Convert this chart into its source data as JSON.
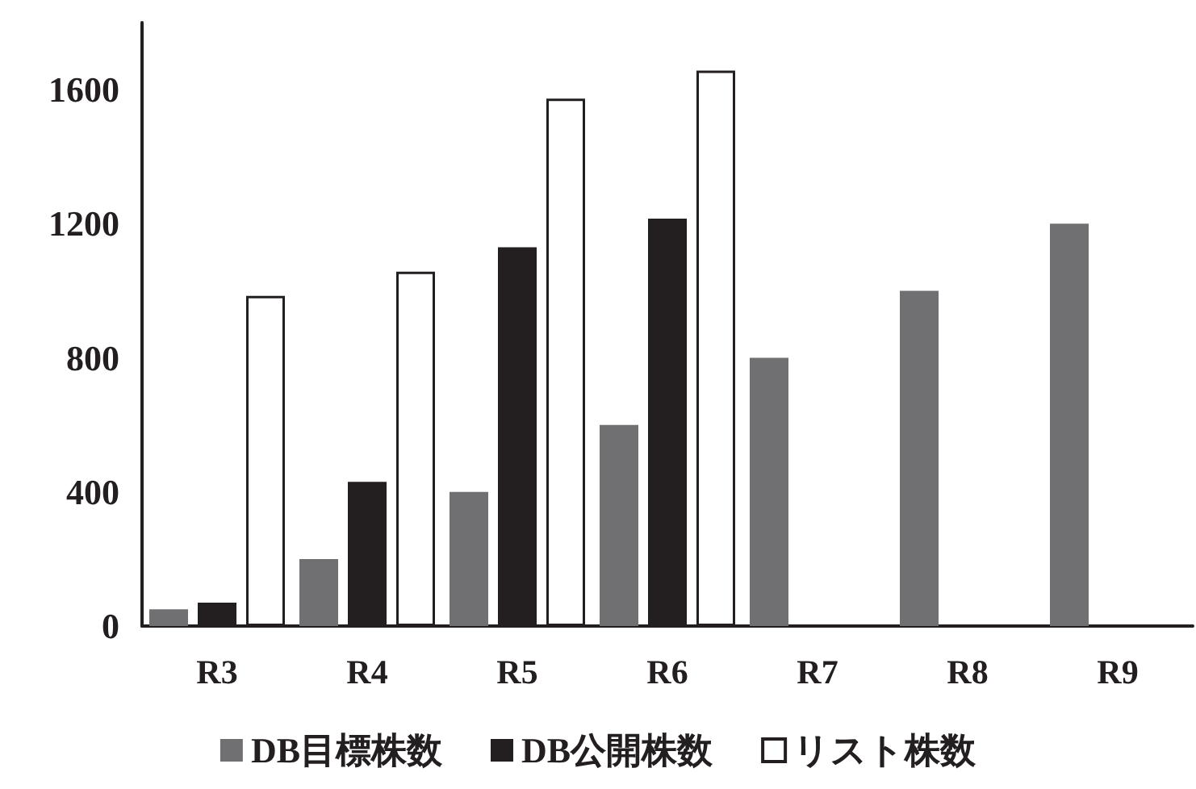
{
  "chart_data": {
    "type": "bar",
    "categories": [
      "R3",
      "R4",
      "R5",
      "R6",
      "R7",
      "R8",
      "R9"
    ],
    "series": [
      {
        "name": "DB目標株数",
        "color": "#707073",
        "values": [
          50,
          200,
          400,
          600,
          800,
          1000,
          1200
        ]
      },
      {
        "name": "DB公開株数",
        "color": "#231f20",
        "values": [
          70,
          430,
          1130,
          1215,
          null,
          null,
          null
        ]
      },
      {
        "name": "リスト株数",
        "color": "#ffffff",
        "values": [
          985,
          1057,
          1573,
          1657,
          null,
          null,
          null
        ]
      }
    ],
    "ylim": [
      0,
      1800
    ],
    "yticks": [
      0,
      400,
      800,
      1200,
      1600
    ],
    "grid": false,
    "legend": "bottom"
  }
}
